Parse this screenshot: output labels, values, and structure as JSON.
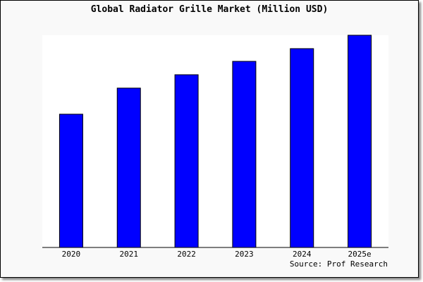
{
  "chart_data": {
    "type": "bar",
    "title": "Global Radiator Grille Market (Million USD)",
    "categories": [
      "2020",
      "2021",
      "2022",
      "2023",
      "2024",
      "2025e"
    ],
    "values": [
      62.8,
      75.1,
      81.4,
      87.7,
      93.7,
      100
    ],
    "value_note_scale": "relative, no y-axis printed",
    "ylim": [
      0,
      100
    ],
    "grid": false,
    "bar_color": "#0000ff",
    "source": "Source: Prof Research"
  }
}
